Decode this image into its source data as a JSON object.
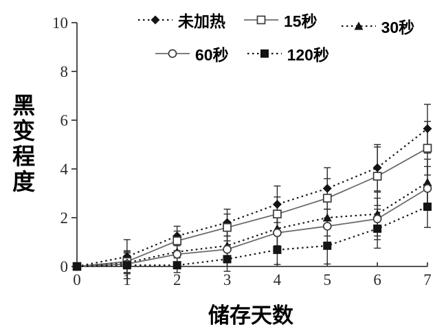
{
  "chart_data": {
    "type": "line",
    "title": "",
    "xlabel": "储存天数",
    "ylabel": "黑变程度",
    "x": [
      0,
      1,
      2,
      3,
      4,
      5,
      6,
      7
    ],
    "xlim": [
      0,
      7
    ],
    "ylim": [
      0,
      10
    ],
    "xticks": [
      0,
      1,
      2,
      3,
      4,
      5,
      6,
      7
    ],
    "yticks": [
      0,
      2,
      4,
      6,
      8,
      10
    ],
    "grid": false,
    "legend_position": "top-center",
    "error_bars": true,
    "series": [
      {
        "name": "未加热",
        "marker": "filled-diamond",
        "line": "dotted",
        "values": [
          0,
          0.4,
          1.25,
          1.8,
          2.55,
          3.2,
          4.05,
          5.65
        ],
        "errors": [
          0,
          0.7,
          0.4,
          0.55,
          0.75,
          0.85,
          0.95,
          1.0
        ]
      },
      {
        "name": "15秒",
        "marker": "open-square",
        "line": "solid",
        "values": [
          0,
          0.2,
          1.05,
          1.6,
          2.15,
          2.8,
          3.7,
          4.85
        ],
        "errors": [
          0,
          0.45,
          0.4,
          0.55,
          0.7,
          0.8,
          1.2,
          1.1
        ]
      },
      {
        "name": "30秒",
        "marker": "filled-triangle",
        "line": "dotted",
        "values": [
          0,
          0.15,
          0.6,
          0.85,
          1.55,
          2.0,
          2.15,
          3.45
        ],
        "errors": [
          0,
          0.4,
          0.45,
          0.6,
          0.7,
          0.75,
          0.9,
          0.95
        ]
      },
      {
        "name": "60秒",
        "marker": "open-circle",
        "line": "solid",
        "values": [
          0,
          0.1,
          0.5,
          0.7,
          1.38,
          1.65,
          1.95,
          3.2
        ],
        "errors": [
          0,
          0.35,
          0.4,
          0.55,
          0.65,
          0.7,
          0.85,
          0.9
        ]
      },
      {
        "name": "120秒",
        "marker": "filled-square",
        "line": "dotted",
        "values": [
          0,
          0.05,
          0.05,
          0.3,
          0.68,
          0.85,
          1.55,
          2.45
        ],
        "errors": [
          0,
          0.55,
          0.3,
          0.5,
          0.6,
          0.75,
          0.8,
          0.85
        ]
      }
    ],
    "colors": {
      "dotted_line": "#141414",
      "solid_line": "#6b6b6b",
      "marker_fill": "#141414",
      "open_marker_stroke": "#3a3a3a",
      "axis": "#3c3c3c",
      "error_bar": "#2a2a2a",
      "tick_text": "#2b2b2b",
      "text": "#000000"
    }
  }
}
